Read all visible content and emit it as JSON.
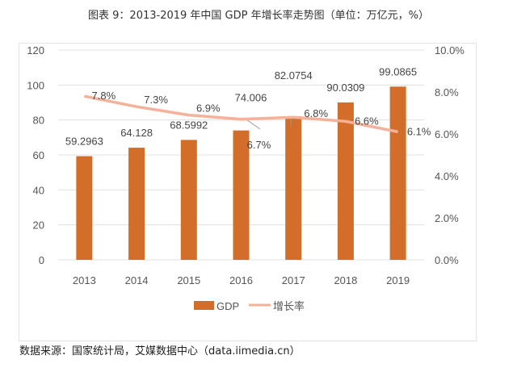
{
  "title": "图表 9：2013-2019 年中国 GDP 年增长率走势图（单位：万亿元，%）",
  "source": "数据来源：国家统计局，艾媒数据中心（data.iimedia.cn）",
  "chart_data": {
    "type": "bar",
    "categories": [
      "2013",
      "2014",
      "2015",
      "2016",
      "2017",
      "2018",
      "2019"
    ],
    "series": [
      {
        "name": "GDP",
        "type": "bar",
        "axis": "left",
        "color": "#D26E2A",
        "values": [
          59.2963,
          64.128,
          68.5992,
          74.006,
          82.0754,
          90.0309,
          99.0865
        ],
        "labels": [
          "59.2963",
          "64.128",
          "68.5992",
          "74.006",
          "82.0754",
          "90.0309",
          "99.0865"
        ]
      },
      {
        "name": "增长率",
        "type": "line",
        "axis": "right",
        "color": "#F4B29A",
        "values": [
          7.8,
          7.3,
          6.9,
          6.7,
          6.8,
          6.6,
          6.1
        ],
        "labels": [
          "7.8%",
          "7.3%",
          "6.9%",
          "6.7%",
          "6.8%",
          "6.6%",
          "6.1%"
        ]
      }
    ],
    "left_axis": {
      "ylim": [
        0,
        120
      ],
      "ticks": [
        "0",
        "20",
        "40",
        "60",
        "80",
        "100",
        "120"
      ]
    },
    "right_axis": {
      "ylim": [
        0,
        10
      ],
      "ticks": [
        "0.0%",
        "2.0%",
        "4.0%",
        "6.0%",
        "8.0%",
        "10.0%"
      ]
    },
    "grid": true,
    "legend": "bottom"
  }
}
